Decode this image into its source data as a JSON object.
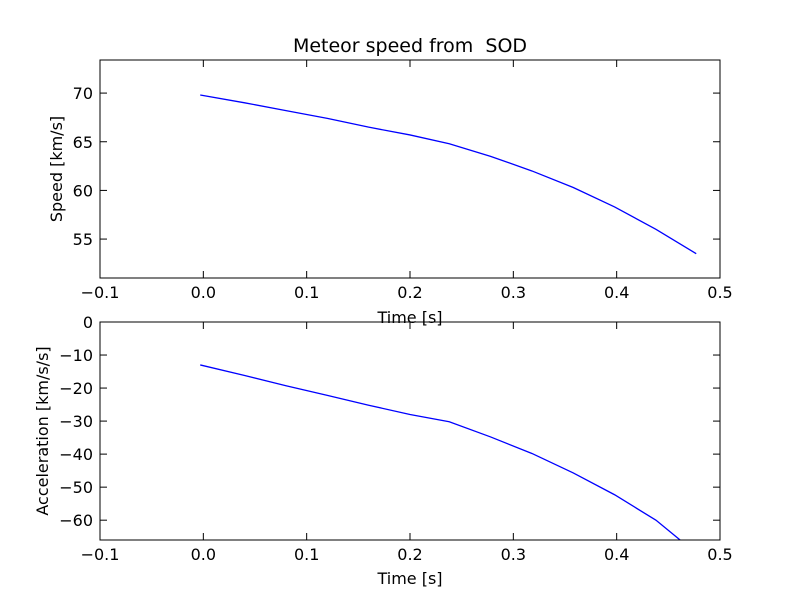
{
  "chart_data": [
    {
      "type": "line",
      "title": "Meteor speed from  SOD",
      "xlabel": "Time [s]",
      "ylabel": "Speed [km/s]",
      "xlim": [
        -0.1,
        0.5
      ],
      "ylim": [
        51,
        73.4
      ],
      "xticks": [
        -0.1,
        0.0,
        0.1,
        0.2,
        0.3,
        0.4,
        0.5
      ],
      "xtick_labels": [
        "−0.1",
        "0.0",
        "0.1",
        "0.2",
        "0.3",
        "0.4",
        "0.5"
      ],
      "yticks": [
        55,
        60,
        65,
        70
      ],
      "ytick_labels": [
        "55",
        "60",
        "65",
        "70"
      ],
      "grid": false,
      "series": [
        {
          "color": "#0000ff",
          "x": [
            -0.003,
            0.04,
            0.08,
            0.12,
            0.16,
            0.2,
            0.238,
            0.278,
            0.318,
            0.358,
            0.398,
            0.438,
            0.477
          ],
          "y": [
            69.8,
            69.0,
            68.2,
            67.4,
            66.5,
            65.7,
            64.8,
            63.5,
            62.0,
            60.3,
            58.3,
            56.0,
            53.5
          ]
        }
      ]
    },
    {
      "type": "line",
      "title": "",
      "xlabel": "Time [s]",
      "ylabel": "Acceleration [km/s/s]",
      "xlim": [
        -0.1,
        0.5
      ],
      "ylim": [
        -66,
        0
      ],
      "xticks": [
        -0.1,
        0.0,
        0.1,
        0.2,
        0.3,
        0.4,
        0.5
      ],
      "xtick_labels": [
        "−0.1",
        "0.0",
        "0.1",
        "0.2",
        "0.3",
        "0.4",
        "0.5"
      ],
      "yticks": [
        -60,
        -50,
        -40,
        -30,
        -20,
        -10,
        0
      ],
      "ytick_labels": [
        "−60",
        "−50",
        "−40",
        "−30",
        "−20",
        "−10",
        "0"
      ],
      "grid": false,
      "series": [
        {
          "color": "#0000ff",
          "x": [
            -0.003,
            0.04,
            0.08,
            0.12,
            0.16,
            0.2,
            0.238,
            0.278,
            0.318,
            0.358,
            0.398,
            0.438,
            0.477
          ],
          "y": [
            -13.0,
            -16.2,
            -19.3,
            -22.2,
            -25.2,
            -28.0,
            -30.2,
            -34.8,
            -39.8,
            -45.7,
            -52.3,
            -60.0,
            -70.0
          ]
        }
      ]
    }
  ]
}
